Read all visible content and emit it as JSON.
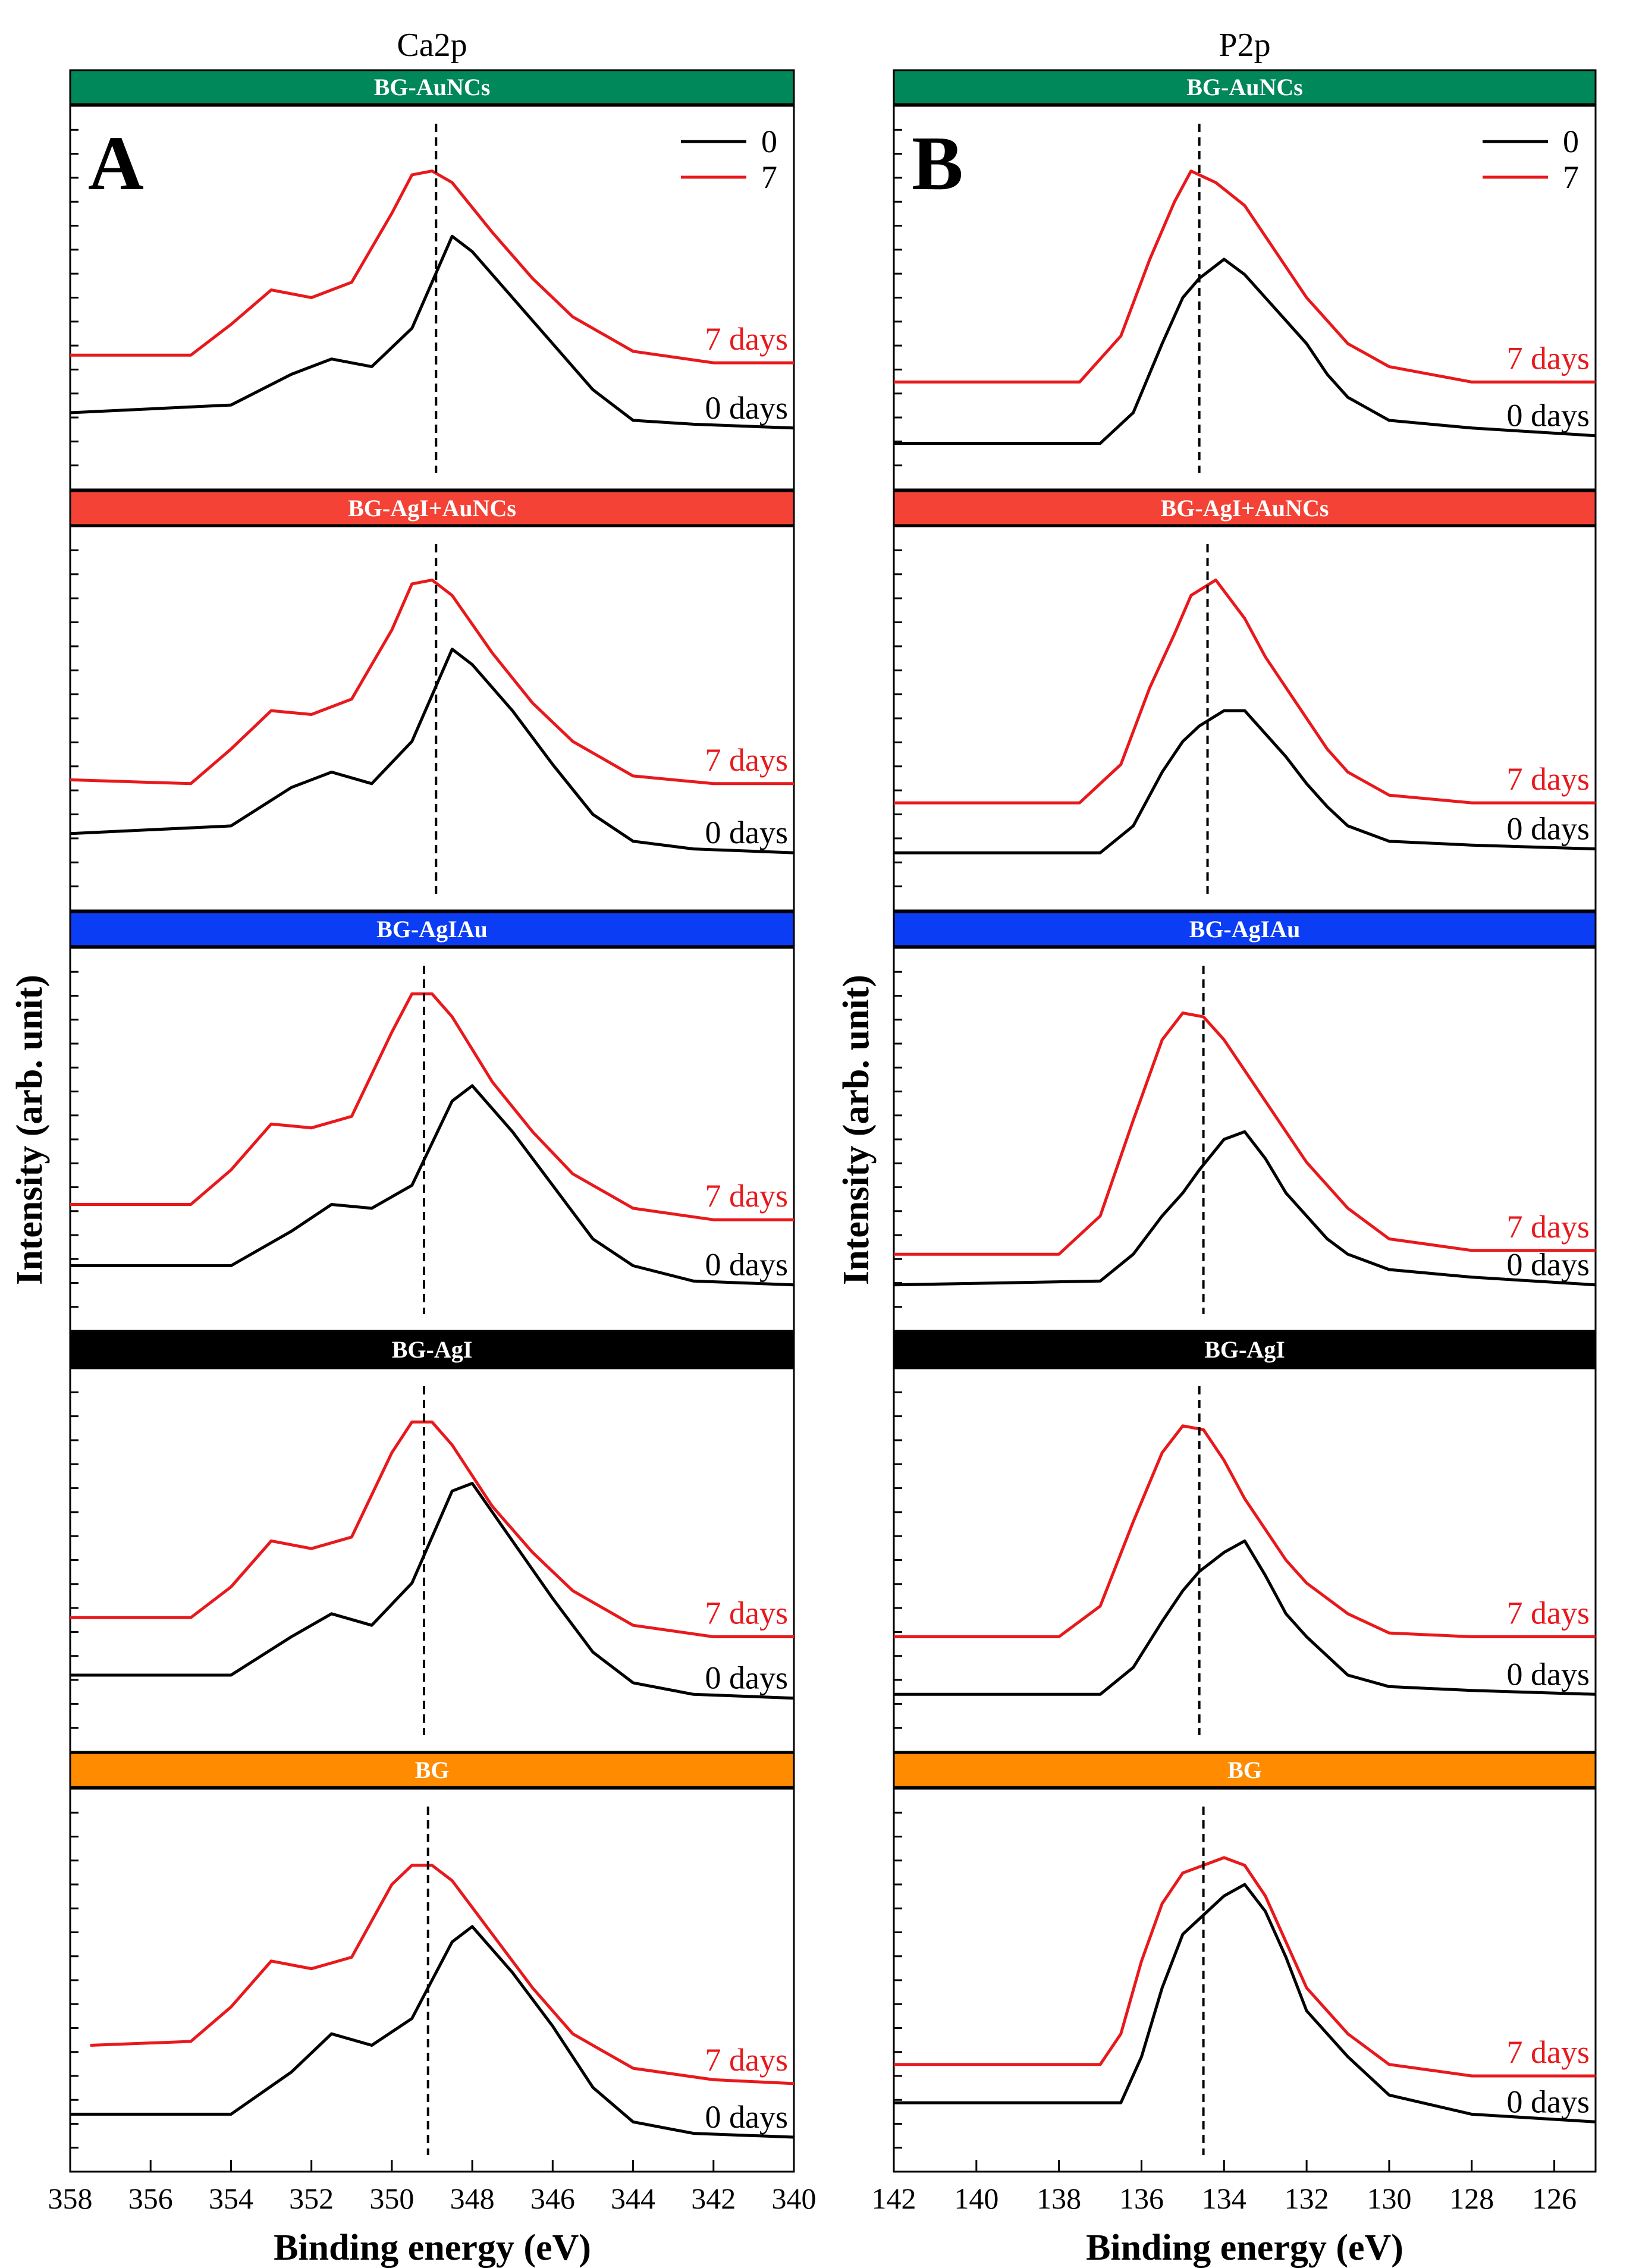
{
  "figure": {
    "y_axis_title": "Intensity (arb. unit)",
    "x_axis_title": "Binding energy (eV)",
    "legend": [
      {
        "label": "0",
        "color": "#000000"
      },
      {
        "label": "7",
        "color": "#e8191c"
      }
    ],
    "curve_label_0": "0 days",
    "curve_label_7": "7 days"
  },
  "chart_data": [
    {
      "type": "line",
      "panel_letter": "A",
      "title": "Ca2p",
      "xlabel": "Binding energy (eV)",
      "ylabel": "Intensity (arb. unit)",
      "xlim": [
        358,
        340
      ],
      "x_reversed": true,
      "x_ticks": [
        358,
        356,
        354,
        352,
        350,
        348,
        346,
        344,
        342,
        340
      ],
      "subplots": [
        {
          "sample": "BG-AuNCs",
          "header_color": "#00875a",
          "peak_marker_ev": 348.9,
          "series": [
            {
              "name": "0 days",
              "color": "#000000",
              "x": [
                358,
                354,
                352.5,
                351.5,
                350.5,
                349.5,
                348.5,
                348.0,
                347.0,
                346.0,
                345.0,
                344.0,
                342.5,
                340
              ],
              "y": [
                0.2,
                0.22,
                0.3,
                0.34,
                0.32,
                0.42,
                0.66,
                0.62,
                0.5,
                0.38,
                0.26,
                0.18,
                0.17,
                0.16
              ]
            },
            {
              "name": "7 days",
              "color": "#e8191c",
              "x": [
                358,
                355,
                354,
                353,
                352,
                351,
                350,
                349.5,
                349.0,
                348.5,
                347.5,
                346.5,
                345.5,
                344,
                342,
                340
              ],
              "y": [
                0.35,
                0.35,
                0.43,
                0.52,
                0.5,
                0.54,
                0.72,
                0.82,
                0.83,
                0.8,
                0.67,
                0.55,
                0.45,
                0.36,
                0.33,
                0.33
              ]
            }
          ]
        },
        {
          "sample": "BG-AgI+AuNCs",
          "header_color": "#f44336",
          "peak_marker_ev": 348.9,
          "series": [
            {
              "name": "0 days",
              "color": "#000000",
              "x": [
                358,
                354,
                352.5,
                351.5,
                350.5,
                349.5,
                348.5,
                348.0,
                347.0,
                346.0,
                345.0,
                344.0,
                342.5,
                340
              ],
              "y": [
                0.2,
                0.22,
                0.32,
                0.36,
                0.33,
                0.44,
                0.68,
                0.64,
                0.52,
                0.38,
                0.25,
                0.18,
                0.16,
                0.15
              ]
            },
            {
              "name": "7 days",
              "color": "#e8191c",
              "x": [
                358,
                355,
                354,
                353,
                352,
                351,
                350,
                349.5,
                349.0,
                348.5,
                347.5,
                346.5,
                345.5,
                344,
                342,
                340
              ],
              "y": [
                0.34,
                0.33,
                0.42,
                0.52,
                0.51,
                0.55,
                0.73,
                0.85,
                0.86,
                0.82,
                0.67,
                0.54,
                0.44,
                0.35,
                0.33,
                0.33
              ]
            }
          ]
        },
        {
          "sample": "BG-AgIAu",
          "header_color": "#0b3df5",
          "peak_marker_ev": 349.2,
          "series": [
            {
              "name": "0 days",
              "color": "#000000",
              "x": [
                358,
                354,
                352.5,
                351.5,
                350.5,
                349.5,
                348.5,
                348.0,
                347.0,
                346.0,
                345.0,
                344.0,
                342.5,
                340
              ],
              "y": [
                0.17,
                0.17,
                0.26,
                0.33,
                0.32,
                0.38,
                0.6,
                0.64,
                0.52,
                0.38,
                0.24,
                0.17,
                0.13,
                0.12
              ]
            },
            {
              "name": "7 days",
              "color": "#e8191c",
              "x": [
                358,
                355,
                354,
                353,
                352,
                351,
                350,
                349.5,
                349.0,
                348.5,
                347.5,
                346.5,
                345.5,
                344,
                342,
                340
              ],
              "y": [
                0.33,
                0.33,
                0.42,
                0.54,
                0.53,
                0.56,
                0.78,
                0.88,
                0.88,
                0.82,
                0.65,
                0.52,
                0.41,
                0.32,
                0.29,
                0.29
              ]
            }
          ]
        },
        {
          "sample": "BG-AgI",
          "header_color": "#000000",
          "peak_marker_ev": 349.2,
          "series": [
            {
              "name": "0 days",
              "color": "#000000",
              "x": [
                358,
                354,
                352.5,
                351.5,
                350.5,
                349.5,
                348.5,
                348.0,
                347.0,
                346.0,
                345.0,
                344.0,
                342.5,
                340
              ],
              "y": [
                0.2,
                0.2,
                0.3,
                0.36,
                0.33,
                0.44,
                0.68,
                0.7,
                0.55,
                0.4,
                0.26,
                0.18,
                0.15,
                0.14
              ]
            },
            {
              "name": "7 days",
              "color": "#e8191c",
              "x": [
                358,
                355,
                354,
                353,
                352,
                351,
                350,
                349.5,
                349.0,
                348.5,
                347.5,
                346.5,
                345.5,
                344,
                342,
                340
              ],
              "y": [
                0.35,
                0.35,
                0.43,
                0.55,
                0.53,
                0.56,
                0.78,
                0.86,
                0.86,
                0.8,
                0.64,
                0.52,
                0.42,
                0.33,
                0.3,
                0.3
              ]
            }
          ]
        },
        {
          "sample": "BG",
          "header_color": "#ff8c00",
          "peak_marker_ev": 349.1,
          "series": [
            {
              "name": "0 days",
              "color": "#000000",
              "x": [
                358,
                354,
                352.5,
                351.5,
                350.5,
                349.5,
                348.5,
                348.0,
                347.0,
                346.0,
                345.0,
                344.0,
                342.5,
                340
              ],
              "y": [
                0.15,
                0.15,
                0.26,
                0.36,
                0.33,
                0.4,
                0.6,
                0.64,
                0.52,
                0.38,
                0.22,
                0.13,
                0.1,
                0.09
              ]
            },
            {
              "name": "7 days",
              "color": "#e8191c",
              "x": [
                357.5,
                355,
                354,
                353,
                352,
                351,
                350,
                349.5,
                349.0,
                348.5,
                347.5,
                346.5,
                345.5,
                344,
                342,
                340
              ],
              "y": [
                0.33,
                0.34,
                0.43,
                0.55,
                0.53,
                0.56,
                0.75,
                0.8,
                0.8,
                0.76,
                0.62,
                0.48,
                0.36,
                0.27,
                0.24,
                0.23
              ]
            }
          ]
        }
      ]
    },
    {
      "type": "line",
      "panel_letter": "B",
      "title": "P2p",
      "xlabel": "Binding energy (eV)",
      "ylabel": "Intensity (arb. unit)",
      "xlim": [
        142,
        125
      ],
      "x_reversed": true,
      "x_ticks": [
        142,
        140,
        138,
        136,
        134,
        132,
        130,
        128,
        126
      ],
      "subplots": [
        {
          "sample": "BG-AuNCs",
          "header_color": "#00875a",
          "peak_marker_ev": 134.6,
          "series": [
            {
              "name": "0 days",
              "color": "#000000",
              "x": [
                142,
                137,
                136.2,
                135.5,
                135.0,
                134.6,
                134.0,
                133.5,
                133.0,
                132.5,
                132.0,
                131.5,
                131.0,
                130.0,
                128,
                125
              ],
              "y": [
                0.12,
                0.12,
                0.2,
                0.38,
                0.5,
                0.55,
                0.6,
                0.56,
                0.5,
                0.44,
                0.38,
                0.3,
                0.24,
                0.18,
                0.16,
                0.14
              ]
            },
            {
              "name": "7 days",
              "color": "#e8191c",
              "x": [
                142,
                137.5,
                136.5,
                135.8,
                135.2,
                134.8,
                134.2,
                133.5,
                133.0,
                132.5,
                132.0,
                131.5,
                131.0,
                130.0,
                128,
                125
              ],
              "y": [
                0.28,
                0.28,
                0.4,
                0.6,
                0.75,
                0.83,
                0.8,
                0.74,
                0.66,
                0.58,
                0.5,
                0.44,
                0.38,
                0.32,
                0.28,
                0.28
              ]
            }
          ]
        },
        {
          "sample": "BG-AgI+AuNCs",
          "header_color": "#f44336",
          "peak_marker_ev": 134.4,
          "series": [
            {
              "name": "0 days",
              "color": "#000000",
              "x": [
                142,
                137,
                136.2,
                135.5,
                135.0,
                134.6,
                134.0,
                133.5,
                133.0,
                132.5,
                132.0,
                131.5,
                131.0,
                130.0,
                128,
                125
              ],
              "y": [
                0.15,
                0.15,
                0.22,
                0.36,
                0.44,
                0.48,
                0.52,
                0.52,
                0.46,
                0.4,
                0.33,
                0.27,
                0.22,
                0.18,
                0.17,
                0.16
              ]
            },
            {
              "name": "7 days",
              "color": "#e8191c",
              "x": [
                142,
                137.5,
                136.5,
                135.8,
                135.2,
                134.8,
                134.2,
                133.5,
                133.0,
                132.5,
                132.0,
                131.5,
                131.0,
                130.0,
                128,
                125
              ],
              "y": [
                0.28,
                0.28,
                0.38,
                0.58,
                0.72,
                0.82,
                0.86,
                0.76,
                0.66,
                0.58,
                0.5,
                0.42,
                0.36,
                0.3,
                0.28,
                0.28
              ]
            }
          ]
        },
        {
          "sample": "BG-AgIAu",
          "header_color": "#0b3df5",
          "peak_marker_ev": 134.5,
          "series": [
            {
              "name": "0 days",
              "color": "#000000",
              "x": [
                142,
                137,
                136.2,
                135.5,
                135.0,
                134.6,
                134.0,
                133.5,
                133.0,
                132.5,
                132.0,
                131.5,
                131.0,
                130.0,
                128,
                125
              ],
              "y": [
                0.12,
                0.13,
                0.2,
                0.3,
                0.36,
                0.42,
                0.5,
                0.52,
                0.45,
                0.36,
                0.3,
                0.24,
                0.2,
                0.16,
                0.14,
                0.12
              ]
            },
            {
              "name": "7 days",
              "color": "#e8191c",
              "x": [
                142,
                138.0,
                137.0,
                136.2,
                135.5,
                135.0,
                134.5,
                134.0,
                133.5,
                133.0,
                132.5,
                132.0,
                131.0,
                130.0,
                128,
                125
              ],
              "y": [
                0.2,
                0.2,
                0.3,
                0.55,
                0.76,
                0.83,
                0.82,
                0.76,
                0.68,
                0.6,
                0.52,
                0.44,
                0.32,
                0.24,
                0.21,
                0.21
              ]
            }
          ]
        },
        {
          "sample": "BG-AgI",
          "header_color": "#000000",
          "peak_marker_ev": 134.6,
          "series": [
            {
              "name": "0 days",
              "color": "#000000",
              "x": [
                142,
                137,
                136.2,
                135.5,
                135.0,
                134.6,
                134.0,
                133.5,
                133.0,
                132.5,
                132.0,
                131.5,
                131.0,
                130.0,
                128,
                125
              ],
              "y": [
                0.15,
                0.15,
                0.22,
                0.34,
                0.42,
                0.47,
                0.52,
                0.55,
                0.46,
                0.36,
                0.3,
                0.25,
                0.2,
                0.17,
                0.16,
                0.15
              ]
            },
            {
              "name": "7 days",
              "color": "#e8191c",
              "x": [
                142,
                138.0,
                137.0,
                136.2,
                135.5,
                135.0,
                134.5,
                134.0,
                133.5,
                133.0,
                132.5,
                132.0,
                131.0,
                130.0,
                128,
                125
              ],
              "y": [
                0.3,
                0.3,
                0.38,
                0.6,
                0.78,
                0.85,
                0.84,
                0.76,
                0.66,
                0.58,
                0.5,
                0.44,
                0.36,
                0.31,
                0.3,
                0.3
              ]
            }
          ]
        },
        {
          "sample": "BG",
          "header_color": "#ff8c00",
          "peak_marker_ev": 134.5,
          "series": [
            {
              "name": "0 days",
              "color": "#000000",
              "x": [
                142,
                136.5,
                136.0,
                135.5,
                135.0,
                134.6,
                134.0,
                133.5,
                133.0,
                132.5,
                132.0,
                131.0,
                130.0,
                128,
                125
              ],
              "y": [
                0.18,
                0.18,
                0.3,
                0.48,
                0.62,
                0.66,
                0.72,
                0.75,
                0.68,
                0.56,
                0.42,
                0.3,
                0.2,
                0.15,
                0.13
              ]
            },
            {
              "name": "7 days",
              "color": "#e8191c",
              "x": [
                142,
                137.0,
                136.5,
                136.0,
                135.5,
                135.0,
                134.5,
                134.0,
                133.5,
                133.0,
                132.5,
                132.0,
                131.0,
                130.0,
                128,
                125
              ],
              "y": [
                0.28,
                0.28,
                0.36,
                0.55,
                0.7,
                0.78,
                0.8,
                0.82,
                0.8,
                0.72,
                0.6,
                0.48,
                0.36,
                0.28,
                0.25,
                0.25
              ]
            }
          ]
        }
      ]
    }
  ]
}
